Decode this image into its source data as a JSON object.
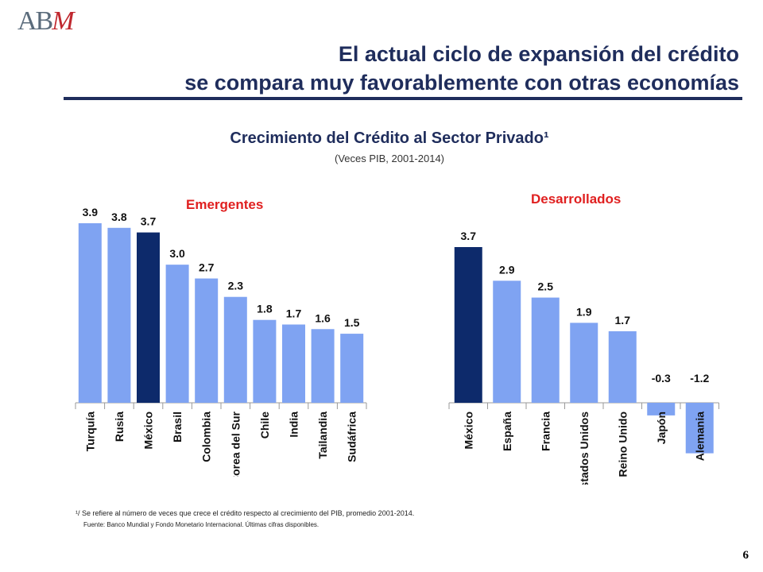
{
  "logo": {
    "text_a": "AB",
    "text_m": "M"
  },
  "title": {
    "line1": "El actual ciclo de expansión del crédito",
    "line2": "se compara muy favorablemente con otras economías"
  },
  "footnote": "¹/ Se refiere al número de veces que crece el crédito respecto  al crecimiento del PIB, promedio 2001-2014.",
  "source": "Fuente: Banco Mundial y Fondo Monetario Internacional. Últimas cifras disponibles.",
  "page_number": "6",
  "colors": {
    "bar": "#7fa3f2",
    "highlight": "#0d2a6b",
    "title": "#1f2d5c",
    "group_title": "#e02020"
  },
  "chart_data": [
    {
      "type": "bar",
      "title": "Crecimiento del Crédito al Sector Privado¹",
      "subtitle": "(Veces PIB, 2001-2014)",
      "group_title": "Emergentes",
      "categories": [
        "Turquía",
        "Rusia",
        "México",
        "Brasil",
        "Colombia",
        "Corea del Sur",
        "Chile",
        "India",
        "Tailandia",
        "Sudáfrica"
      ],
      "values": [
        3.9,
        3.8,
        3.7,
        3.0,
        2.7,
        2.3,
        1.8,
        1.7,
        1.6,
        1.5
      ],
      "value_labels": [
        "3.9",
        "3.8",
        "3.7",
        "3.0",
        "2.7",
        "2.3",
        "1.8",
        "1.7",
        "1.6",
        "1.5"
      ],
      "highlight_category": "México",
      "ylim": [
        0,
        3.9
      ]
    },
    {
      "type": "bar",
      "group_title": "Desarrollados",
      "categories": [
        "México",
        "España",
        "Francia",
        "Estados Unidos",
        "Reino Unido",
        "Japón",
        "Alemania"
      ],
      "values": [
        3.7,
        2.9,
        2.5,
        1.9,
        1.7,
        -0.3,
        -1.2
      ],
      "value_labels": [
        "3.7",
        "2.9",
        "2.5",
        "1.9",
        "1.7",
        "-0.3",
        "-1.2"
      ],
      "highlight_category": "México",
      "ylim": [
        -1.2,
        3.7
      ]
    }
  ]
}
